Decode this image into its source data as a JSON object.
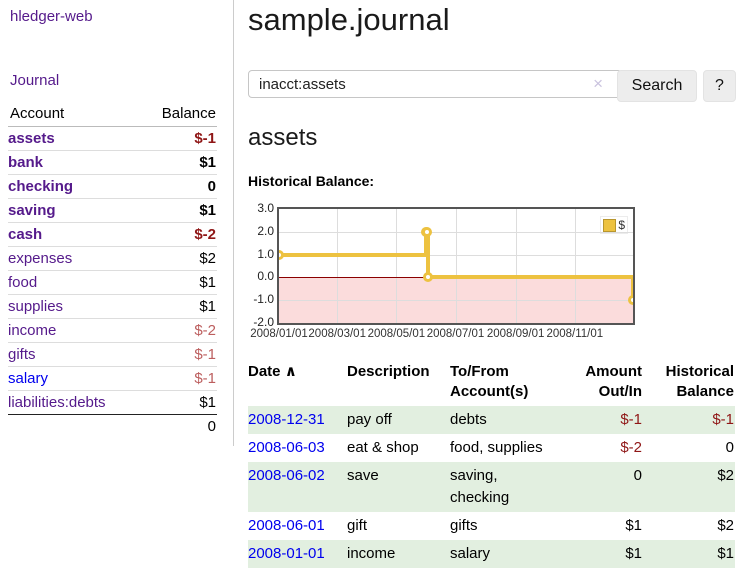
{
  "app": {
    "title": "hledger-web"
  },
  "sidebar": {
    "nav": {
      "journal": "Journal"
    },
    "table": {
      "headers": {
        "account": "Account",
        "balance": "Balance"
      },
      "accounts": [
        {
          "name": "assets",
          "balance": "$-1",
          "depth": 1
        },
        {
          "name": "bank",
          "balance": "$1",
          "depth": 2
        },
        {
          "name": "checking",
          "balance": "0",
          "depth": 3
        },
        {
          "name": "saving",
          "balance": "$1",
          "depth": 3
        },
        {
          "name": "cash",
          "balance": "$-2",
          "depth": 2
        },
        {
          "name": "expenses",
          "balance": "$2",
          "depth": 1
        },
        {
          "name": "food",
          "balance": "$1",
          "depth": 2
        },
        {
          "name": "supplies",
          "balance": "$1",
          "depth": 2
        },
        {
          "name": "income",
          "balance": "$-2",
          "depth": 1
        },
        {
          "name": "gifts",
          "balance": "$-1",
          "depth": 2
        },
        {
          "name": "salary",
          "balance": "$-1",
          "depth": 2
        },
        {
          "name": "liabilities:debts",
          "balance": "$1",
          "depth": 1
        }
      ],
      "total": "0"
    }
  },
  "main": {
    "title": "sample.journal",
    "search": {
      "value": "inacct:assets",
      "clear_icon": "×",
      "button": "Search",
      "help_button": "?"
    },
    "heading": "assets",
    "chart_label": "Historical Balance:",
    "table": {
      "headers": {
        "date": "Date",
        "sort_arrow": "∧",
        "description": "Description",
        "accounts": "To/From Account(s)",
        "amount": "Amount Out/In",
        "balance": "Historical Balance"
      },
      "rows": [
        {
          "date": "2008-12-31",
          "description": "pay off",
          "accounts": "debts",
          "amount": "$-1",
          "balance": "$-1"
        },
        {
          "date": "2008-06-03",
          "description": "eat & shop",
          "accounts": "food, supplies",
          "amount": "$-2",
          "balance": "0"
        },
        {
          "date": "2008-06-02",
          "description": "save",
          "accounts": "saving, checking",
          "amount": "0",
          "balance": "$2"
        },
        {
          "date": "2008-06-01",
          "description": "gift",
          "accounts": "gifts",
          "amount": "$1",
          "balance": "$2"
        },
        {
          "date": "2008-01-01",
          "description": "income",
          "accounts": "salary",
          "amount": "$1",
          "balance": "$1"
        }
      ]
    }
  },
  "chart_data": {
    "type": "line",
    "title": "Historical Balance:",
    "step": true,
    "series": [
      {
        "name": "$",
        "color": "#edc240",
        "points": [
          [
            "2008-01-01",
            1
          ],
          [
            "2008-06-01",
            2
          ],
          [
            "2008-06-02",
            2
          ],
          [
            "2008-06-03",
            0
          ],
          [
            "2008-12-31",
            -1
          ]
        ]
      }
    ],
    "xrange": [
      "2008-01-01",
      "2008-12-31"
    ],
    "ylim": [
      -2,
      3
    ],
    "y_ticks": [
      3,
      2,
      1,
      0,
      -1,
      -2
    ],
    "y_tick_labels": [
      "3.0",
      "2.0",
      "1.0",
      "0.0",
      "-1.0",
      "-2.0"
    ],
    "x_ticks": [
      "2008-01-01",
      "2008-03-01",
      "2008-05-01",
      "2008-07-01",
      "2008-09-01",
      "2008-11-01"
    ],
    "x_tick_labels": [
      "2008/01/01",
      "2008/03/01",
      "2008/05/01",
      "2008/07/01",
      "2008/09/01",
      "2008/11/01"
    ],
    "grid": true,
    "legend_position": "top-right",
    "colors": {
      "negative_region": "#fbdcdc",
      "zero_line": "#8b0000",
      "grid": "#dddddd",
      "border": "#555555",
      "marker_fill": "#ffffff"
    }
  }
}
